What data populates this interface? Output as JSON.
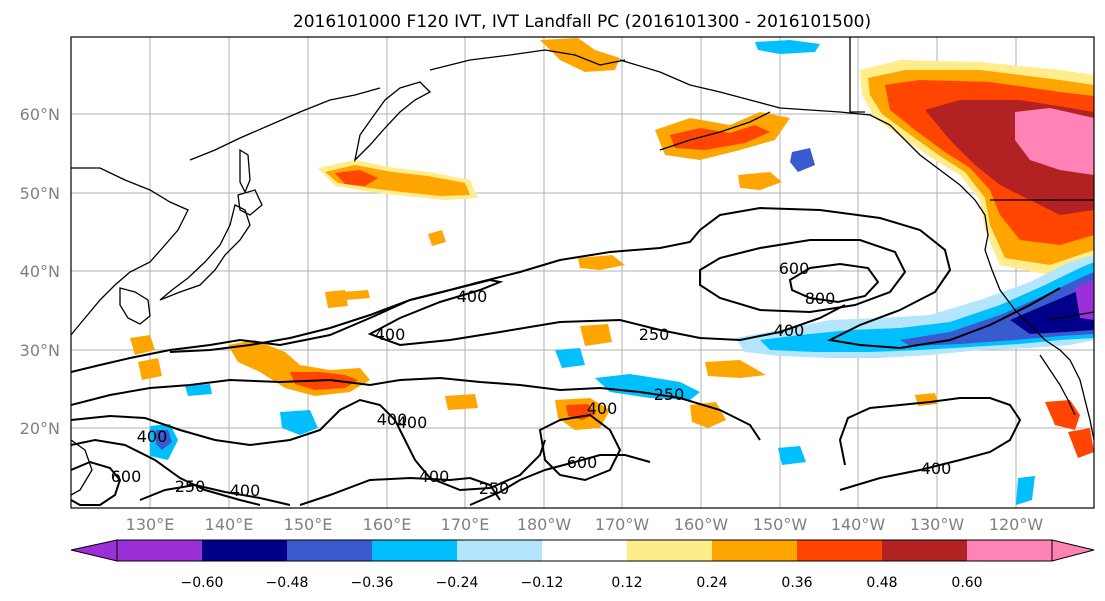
{
  "title": "2016101000 F120 IVT, IVT Landfall PC (2016101300 - 2016101500)",
  "lat_labels": [
    "60°N",
    "50°N",
    "40°N",
    "30°N",
    "20°N"
  ],
  "lon_labels": [
    "130°E",
    "140°E",
    "150°E",
    "160°E",
    "170°E",
    "180°W",
    "170°W",
    "160°W",
    "150°W",
    "140°W",
    "130°W",
    "120°W"
  ],
  "colorbar": {
    "ticks": [
      "−0.60",
      "−0.48",
      "−0.36",
      "−0.24",
      "−0.12",
      "0.12",
      "0.24",
      "0.36",
      "0.48",
      "0.60"
    ],
    "colors": [
      "#9b30d9",
      "#00008b",
      "#3a5bcf",
      "#00bfff",
      "#b3e5fc",
      "#ffffff",
      "#ffec8b",
      "#ffa500",
      "#ff4500",
      "#b22222",
      "#ff83b4"
    ]
  },
  "contour_labels": [
    "400",
    "400",
    "250",
    "400",
    "600",
    "800",
    "400",
    "250",
    "400",
    "400",
    "250",
    "400",
    "600",
    "400",
    "250",
    "600",
    "400",
    "400"
  ]
}
